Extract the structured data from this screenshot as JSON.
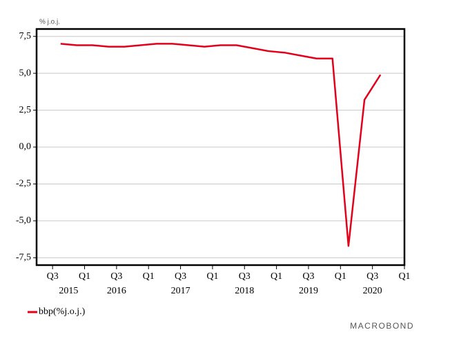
{
  "chart_data": {
    "type": "line",
    "y_unit_label": "% j.o.j.",
    "x": [
      2015.625,
      2015.875,
      2016.125,
      2016.375,
      2016.625,
      2016.875,
      2017.125,
      2017.375,
      2017.625,
      2017.875,
      2018.125,
      2018.375,
      2018.625,
      2018.875,
      2019.125,
      2019.375,
      2019.625,
      2019.875,
      2020.125,
      2020.375,
      2020.625
    ],
    "series": [
      {
        "name": "bbp(%j.o.j.)",
        "color": "#e2001a",
        "values": [
          7.0,
          6.9,
          6.9,
          6.8,
          6.8,
          6.9,
          7.0,
          7.0,
          6.9,
          6.8,
          6.9,
          6.9,
          6.7,
          6.5,
          6.4,
          6.2,
          6.0,
          6.0,
          -6.7,
          3.2,
          4.9
        ]
      }
    ],
    "xlim": [
      2015.25,
      2021.0
    ],
    "xticks": [
      {
        "value": 2015.5,
        "label": "Q3"
      },
      {
        "value": 2016.0,
        "label": "Q1"
      },
      {
        "value": 2016.5,
        "label": "Q3"
      },
      {
        "value": 2017.0,
        "label": "Q1"
      },
      {
        "value": 2017.5,
        "label": "Q3"
      },
      {
        "value": 2018.0,
        "label": "Q1"
      },
      {
        "value": 2018.5,
        "label": "Q3"
      },
      {
        "value": 2019.0,
        "label": "Q1"
      },
      {
        "value": 2019.5,
        "label": "Q3"
      },
      {
        "value": 2020.0,
        "label": "Q1"
      },
      {
        "value": 2020.5,
        "label": "Q3"
      },
      {
        "value": 2021.0,
        "label": "Q1"
      }
    ],
    "year_labels": [
      {
        "value": 2015.75,
        "label": "2015"
      },
      {
        "value": 2016.5,
        "label": "2016"
      },
      {
        "value": 2017.5,
        "label": "2017"
      },
      {
        "value": 2018.5,
        "label": "2018"
      },
      {
        "value": 2019.5,
        "label": "2019"
      },
      {
        "value": 2020.5,
        "label": "2020"
      }
    ],
    "ylim": [
      -8,
      8
    ],
    "yticks": [
      {
        "value": 7.5,
        "label": "7,5"
      },
      {
        "value": 5.0,
        "label": "5,0"
      },
      {
        "value": 2.5,
        "label": "2,5"
      },
      {
        "value": 0.0,
        "label": "0,0"
      },
      {
        "value": -2.5,
        "label": "-2,5"
      },
      {
        "value": -5.0,
        "label": "-5,0"
      },
      {
        "value": -7.5,
        "label": "-7,5"
      }
    ],
    "grid": true,
    "legend": "bottom-left",
    "source": "MACROBOND"
  }
}
